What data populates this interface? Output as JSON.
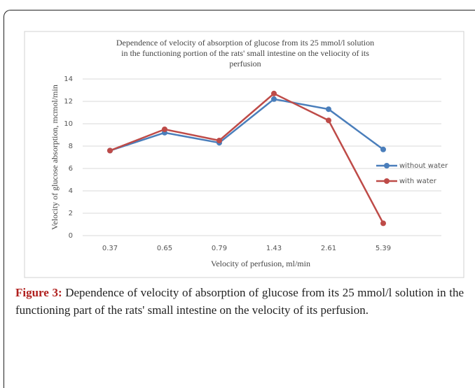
{
  "chart_data": {
    "type": "line",
    "title": [
      "Dependence of velocity  of absorption  of glucose  from  its  25 mmol/l  solution",
      "in  the functioning  portion  of the rats' small  intestine  on  the veliocity  of its",
      "perfusion"
    ],
    "x_label": "Velocity of perfusion, ml/min",
    "y_label": "Velocity of glucose absorption,  mcmol/min",
    "categories": [
      "0.37",
      "0.65",
      "0.79",
      "1.43",
      "2.61",
      "5.39"
    ],
    "series": [
      {
        "name": "without  water",
        "color": "#4a7ebb",
        "values": [
          7.6,
          9.2,
          8.3,
          12.2,
          11.3,
          7.7
        ]
      },
      {
        "name": "with water",
        "color": "#be4b48",
        "values": [
          7.6,
          9.5,
          8.5,
          12.7,
          10.3,
          1.1
        ]
      }
    ],
    "ylim": [
      0,
      14
    ],
    "yticks": [
      0,
      2,
      4,
      6,
      8,
      10,
      12,
      14
    ],
    "grid": true
  },
  "caption": {
    "label": "Figure 3:",
    "text": "Dependence of velocity of absorption of glucose from its 25 mmol/l solution in the functioning part of the rats' small intestine on the velocity of its perfusion."
  }
}
